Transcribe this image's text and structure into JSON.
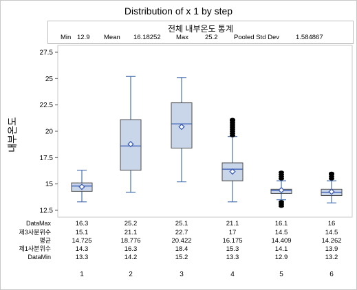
{
  "colors": {
    "box_fill": "#c9d6ea",
    "box_stroke": "#4a4a4a",
    "median": "#3d5fb3",
    "whisker": "#4a72b4",
    "outlier": "#000000",
    "frame": "#c8c8c8"
  },
  "stats": {
    "title": "전체 내부온도 통계",
    "min_label": "Min",
    "min_value": "12.9",
    "mean_label": "Mean",
    "mean_value": "16.18252",
    "max_label": "Max",
    "max_value": "25.2",
    "psd_label": "Pooled Std Dev",
    "psd_value": "1.584867"
  },
  "chart_data": {
    "type": "boxplot",
    "title": "Distribution of x 1 by step",
    "ylabel": "내부온도",
    "xlabel": "",
    "categories": [
      "1",
      "2",
      "3",
      "4",
      "5",
      "6"
    ],
    "ylim": [
      12.5,
      27.5
    ],
    "yticks": [
      "12.5",
      "15",
      "17.5",
      "20",
      "22.5",
      "25",
      "27.5"
    ],
    "row_labels": [
      "DataMax",
      "제3사분위수",
      "평균",
      "제1사분위수",
      "DataMin"
    ],
    "boxes": [
      {
        "step": "1",
        "data_max": 16.3,
        "q3": 15.1,
        "mean": 14.725,
        "median": 14.8,
        "q1": 14.3,
        "data_min": 13.3,
        "whisker_high": 16.3,
        "whisker_low": 13.3,
        "outliers_high": [],
        "outliers_low": []
      },
      {
        "step": "2",
        "data_max": 25.2,
        "q3": 21.1,
        "mean": 18.776,
        "median": 18.6,
        "q1": 16.3,
        "data_min": 14.2,
        "whisker_high": 25.2,
        "whisker_low": 14.2,
        "outliers_high": [],
        "outliers_low": []
      },
      {
        "step": "3",
        "data_max": 25.1,
        "q3": 22.7,
        "mean": 20.422,
        "median": 20.7,
        "q1": 18.4,
        "data_min": 15.2,
        "whisker_high": 25.1,
        "whisker_low": 15.2,
        "outliers_high": [],
        "outliers_low": []
      },
      {
        "step": "4",
        "data_max": 21.1,
        "q3": 17,
        "mean": 16.175,
        "median": 16.4,
        "q1": 15.3,
        "data_min": 13.3,
        "whisker_high": 19.5,
        "whisker_low": 13.3,
        "outliers_high": [
          19.6,
          19.8,
          20.0,
          20.2,
          20.4,
          20.6,
          20.8,
          21.0,
          21.1
        ],
        "outliers_low": []
      },
      {
        "step": "5",
        "data_max": 16.1,
        "q3": 14.5,
        "mean": 14.409,
        "median": 14.4,
        "q1": 14.1,
        "data_min": 12.9,
        "whisker_high": 15.3,
        "whisker_low": 13.5,
        "outliers_high": [
          15.5,
          15.7,
          15.9,
          16.1
        ],
        "outliers_low": [
          13.3,
          13.1,
          12.9
        ]
      },
      {
        "step": "6",
        "data_max": 16,
        "q3": 14.5,
        "mean": 14.262,
        "median": 14.2,
        "q1": 13.9,
        "data_min": 13.2,
        "whisker_high": 15.3,
        "whisker_low": 13.2,
        "outliers_high": [
          15.5,
          15.7,
          15.9,
          16.0
        ],
        "outliers_low": []
      }
    ],
    "table_values": [
      [
        "16.3",
        "25.2",
        "25.1",
        "21.1",
        "16.1",
        "16"
      ],
      [
        "15.1",
        "21.1",
        "22.7",
        "17",
        "14.5",
        "14.5"
      ],
      [
        "14.725",
        "18.776",
        "20.422",
        "16.175",
        "14.409",
        "14.262"
      ],
      [
        "14.3",
        "16.3",
        "18.4",
        "15.3",
        "14.1",
        "13.9"
      ],
      [
        "13.3",
        "14.2",
        "15.2",
        "13.3",
        "12.9",
        "13.2"
      ]
    ]
  }
}
